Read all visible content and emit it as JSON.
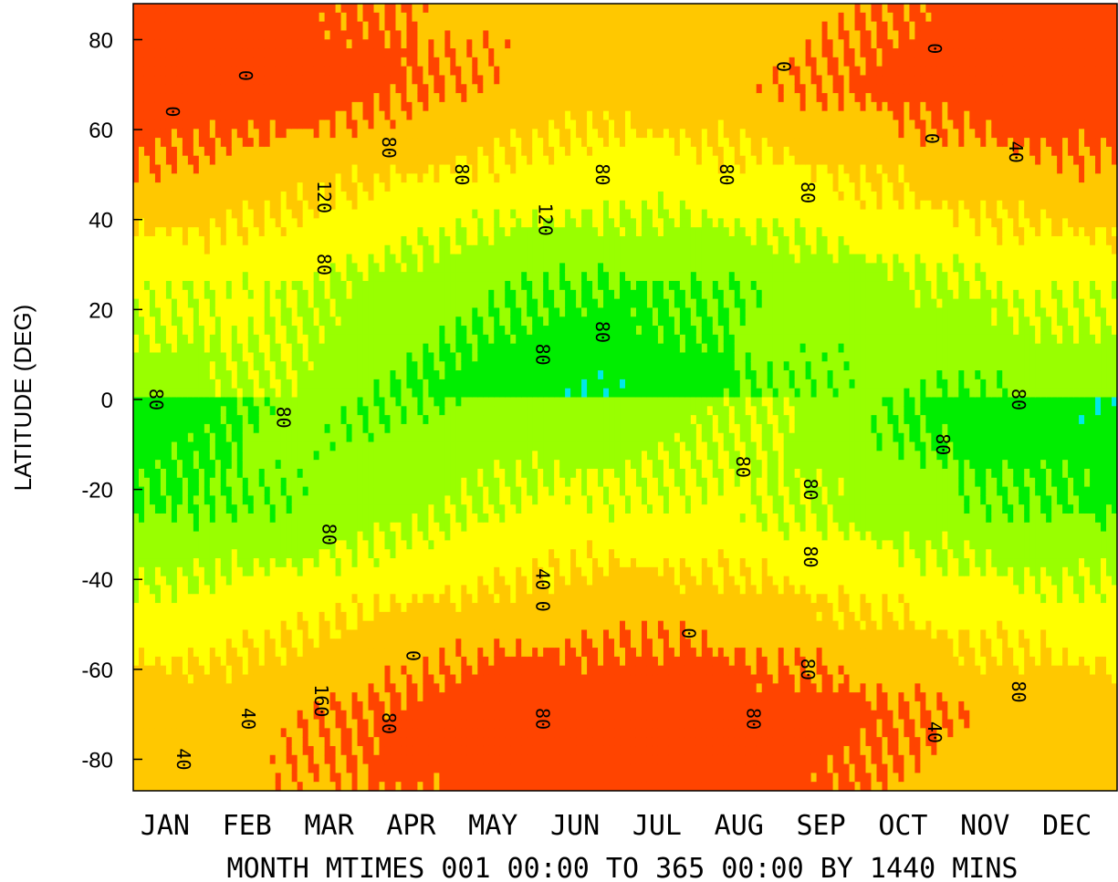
{
  "chart_data": {
    "type": "heatmap",
    "subtype": "filled-contour",
    "ylabel": "LATITUDE (DEG)",
    "xlabel": "MONTH MTIMES 001 00:00 TO 365 00:00 BY 1440 MINS",
    "x_tick_labels": [
      "JAN",
      "FEB",
      "MAR",
      "APR",
      "MAY",
      "JUN",
      "JUL",
      "AUG",
      "SEP",
      "OCT",
      "NOV",
      "DEC"
    ],
    "y_ticks": [
      80,
      60,
      40,
      20,
      0,
      -20,
      -40,
      -60,
      -80
    ],
    "y_tick_labels": [
      "80",
      "60",
      "40",
      "20",
      "0",
      "-20",
      "-40",
      "-60",
      "-80"
    ],
    "xlim_day": [
      1,
      365
    ],
    "ylim": [
      -87,
      88
    ],
    "grid": false,
    "contour_levels": [
      0,
      40,
      80,
      120,
      160
    ],
    "level_colors": {
      "below_0": "#ff4400",
      "0_to_40": "#ffc800",
      "40_to_80": "#ffff00",
      "80_to_120": "#99ff00",
      "120_to_160": "#00ee00",
      "above_160": "#00e8e8"
    },
    "contour_labels": [
      {
        "text": "0",
        "day": 42,
        "lat": 72
      },
      {
        "text": "0",
        "day": 15,
        "lat": 64
      },
      {
        "text": "120",
        "day": 71,
        "lat": 45
      },
      {
        "text": "80",
        "day": 71,
        "lat": 30
      },
      {
        "text": "80",
        "day": 95,
        "lat": 56
      },
      {
        "text": "80",
        "day": 122,
        "lat": 50
      },
      {
        "text": "120",
        "day": 153,
        "lat": 40
      },
      {
        "text": "80",
        "day": 174,
        "lat": 50
      },
      {
        "text": "80",
        "day": 220,
        "lat": 50
      },
      {
        "text": "0",
        "day": 241,
        "lat": 74
      },
      {
        "text": "80",
        "day": 250,
        "lat": 46
      },
      {
        "text": "0",
        "day": 297,
        "lat": 78
      },
      {
        "text": "0",
        "day": 296,
        "lat": 58
      },
      {
        "text": "40",
        "day": 327,
        "lat": 55
      },
      {
        "text": "80",
        "day": 9,
        "lat": 0
      },
      {
        "text": "80",
        "day": 56,
        "lat": -4
      },
      {
        "text": "80",
        "day": 152,
        "lat": 10
      },
      {
        "text": "80",
        "day": 174,
        "lat": 15
      },
      {
        "text": "80",
        "day": 226,
        "lat": -15
      },
      {
        "text": "80",
        "day": 251,
        "lat": -20
      },
      {
        "text": "80",
        "day": 300,
        "lat": -10
      },
      {
        "text": "80",
        "day": 328,
        "lat": 0
      },
      {
        "text": "80",
        "day": 73,
        "lat": -30
      },
      {
        "text": "40",
        "day": 152,
        "lat": -40
      },
      {
        "text": "0",
        "day": 152,
        "lat": -46
      },
      {
        "text": "80",
        "day": 251,
        "lat": -35
      },
      {
        "text": "0",
        "day": 104,
        "lat": -57
      },
      {
        "text": "0",
        "day": 206,
        "lat": -52
      },
      {
        "text": "160",
        "day": 70,
        "lat": -67
      },
      {
        "text": "80",
        "day": 95,
        "lat": -72
      },
      {
        "text": "40",
        "day": 43,
        "lat": -71
      },
      {
        "text": "40",
        "day": 19,
        "lat": -80
      },
      {
        "text": "80",
        "day": 152,
        "lat": -71
      },
      {
        "text": "80",
        "day": 230,
        "lat": -71
      },
      {
        "text": "80",
        "day": 250,
        "lat": -60
      },
      {
        "text": "40",
        "day": 297,
        "lat": -74
      },
      {
        "text": "80",
        "day": 328,
        "lat": -65
      }
    ]
  }
}
